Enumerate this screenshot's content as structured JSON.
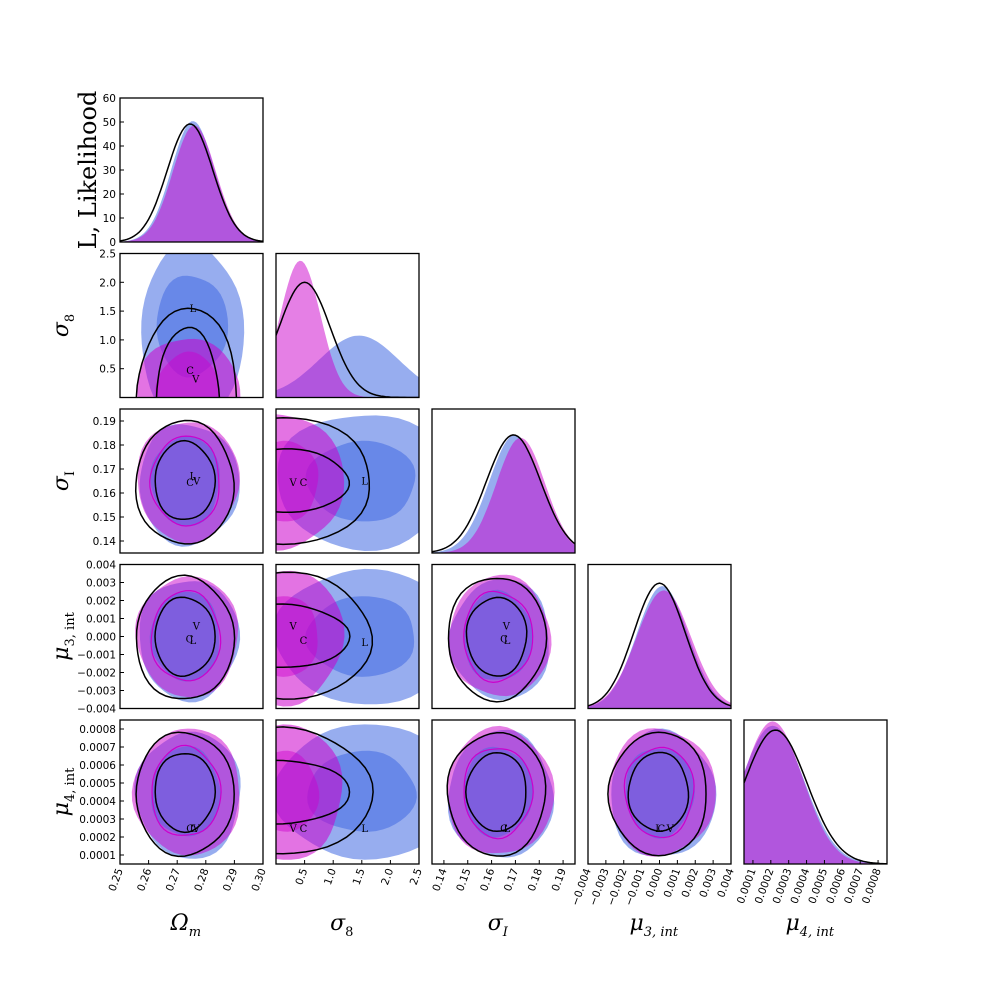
{
  "colors": {
    "blue": "#4169e1",
    "magenta": "#cc00cc",
    "black": "#000000"
  },
  "chart_data": {
    "type": "scatter",
    "subtype": "corner-plot",
    "parameters": [
      {
        "key": "om",
        "label": "Ω",
        "sub": "m",
        "range": [
          0.25,
          0.3
        ],
        "ticks": [
          0.25,
          0.26,
          0.27,
          0.28,
          0.29,
          0.3
        ],
        "tick_labels": [
          "0.25",
          "0.26",
          "0.27",
          "0.28",
          "0.29",
          "0.30"
        ],
        "hist_mean": 0.2755,
        "hist_sigma": 0.0078
      },
      {
        "key": "s8",
        "label": "σ",
        "sub": "8",
        "range": [
          0.0,
          2.5
        ],
        "ticks": [
          0.5,
          1.0,
          1.5,
          2.0,
          2.5
        ],
        "tick_labels": [
          "0.5",
          "1.0",
          "1.5",
          "2.0",
          "2.5"
        ]
      },
      {
        "key": "si",
        "label": "σ",
        "sub": "I",
        "range": [
          0.135,
          0.195
        ],
        "ticks": [
          0.14,
          0.15,
          0.16,
          0.17,
          0.18,
          0.19
        ],
        "tick_labels": [
          "0.14",
          "0.15",
          "0.16",
          "0.17",
          "0.18",
          "0.19"
        ]
      },
      {
        "key": "m3",
        "label": "μ",
        "sub": "3, int",
        "range": [
          -0.004,
          0.004
        ],
        "ticks": [
          -0.004,
          -0.003,
          -0.002,
          -0.001,
          0.0,
          0.001,
          0.002,
          0.003,
          0.004
        ],
        "tick_labels": [
          "−0.004",
          "−0.003",
          "−0.002",
          "−0.001",
          "0.000",
          "0.001",
          "0.002",
          "0.003",
          "0.004"
        ]
      },
      {
        "key": "m4",
        "label": "μ",
        "sub": "4, int",
        "range": [
          5e-05,
          0.00085
        ],
        "ticks": [
          0.0001,
          0.0002,
          0.0003,
          0.0004,
          0.0005,
          0.0006,
          0.0007,
          0.0008
        ],
        "tick_labels": [
          "0.0001",
          "0.0002",
          "0.0003",
          "0.0004",
          "0.0005",
          "0.0006",
          "0.0007",
          "0.0008"
        ]
      }
    ],
    "first_diag_ylabel": "L, Likelihood",
    "first_diag_ylim": [
      0,
      60
    ],
    "first_diag_yticks": [
      0,
      10,
      20,
      30,
      40,
      50,
      60
    ],
    "series": [
      {
        "name": "",
        "color": "#4169e1"
      },
      {
        "name": "",
        "color": "#cc00cc"
      },
      {
        "name": "",
        "color": "#000000"
      }
    ],
    "point_markers": [
      {
        "cell": [
          1,
          0
        ],
        "text": "L",
        "x": 0.2755,
        "y": 1.55
      },
      {
        "cell": [
          1,
          0
        ],
        "text": "C",
        "x": 0.2745,
        "y": 0.48
      },
      {
        "cell": [
          1,
          0
        ],
        "text": "V",
        "x": 0.2765,
        "y": 0.33
      },
      {
        "cell": [
          2,
          0
        ],
        "text": "L",
        "x": 0.2755,
        "y": 0.1672
      },
      {
        "cell": [
          2,
          0
        ],
        "text": "C",
        "x": 0.2745,
        "y": 0.1645
      },
      {
        "cell": [
          2,
          0
        ],
        "text": "V",
        "x": 0.2768,
        "y": 0.1652
      },
      {
        "cell": [
          3,
          0
        ],
        "text": "V",
        "x": 0.2767,
        "y": 0.0006
      },
      {
        "cell": [
          3,
          0
        ],
        "text": "C",
        "x": 0.2743,
        "y": -0.0001
      },
      {
        "cell": [
          3,
          0
        ],
        "text": "L",
        "x": 0.2755,
        "y": -0.0002
      },
      {
        "cell": [
          4,
          0
        ],
        "text": "C",
        "x": 0.2745,
        "y": 0.00025
      },
      {
        "cell": [
          4,
          0
        ],
        "text": "L",
        "x": 0.2755,
        "y": 0.00025
      },
      {
        "cell": [
          4,
          0
        ],
        "text": "V",
        "x": 0.2767,
        "y": 0.00025
      },
      {
        "cell": [
          2,
          1
        ],
        "text": "V",
        "x": 0.3,
        "y": 0.1645
      },
      {
        "cell": [
          2,
          1
        ],
        "text": "C",
        "x": 0.48,
        "y": 0.1645
      },
      {
        "cell": [
          2,
          1
        ],
        "text": "L",
        "x": 1.55,
        "y": 0.1652
      },
      {
        "cell": [
          3,
          1
        ],
        "text": "V",
        "x": 0.3,
        "y": 0.0006
      },
      {
        "cell": [
          3,
          1
        ],
        "text": "C",
        "x": 0.48,
        "y": -0.0002
      },
      {
        "cell": [
          3,
          1
        ],
        "text": "L",
        "x": 1.55,
        "y": -0.0003
      },
      {
        "cell": [
          4,
          1
        ],
        "text": "V",
        "x": 0.3,
        "y": 0.00025
      },
      {
        "cell": [
          4,
          1
        ],
        "text": "C",
        "x": 0.48,
        "y": 0.00025
      },
      {
        "cell": [
          4,
          1
        ],
        "text": "L",
        "x": 1.55,
        "y": 0.00025
      },
      {
        "cell": [
          3,
          2
        ],
        "text": "V",
        "x": 0.1662,
        "y": 0.0006
      },
      {
        "cell": [
          3,
          2
        ],
        "text": "C",
        "x": 0.1652,
        "y": -0.0001
      },
      {
        "cell": [
          3,
          2
        ],
        "text": "L",
        "x": 0.1665,
        "y": -0.0002
      },
      {
        "cell": [
          4,
          2
        ],
        "text": "C",
        "x": 0.1652,
        "y": 0.00025
      },
      {
        "cell": [
          4,
          2
        ],
        "text": "L",
        "x": 0.1664,
        "y": 0.00025
      },
      {
        "cell": [
          4,
          3
        ],
        "text": "L",
        "x": -5e-05,
        "y": 0.00025
      },
      {
        "cell": [
          4,
          3
        ],
        "text": "C",
        "x": 0.0001,
        "y": 0.00025
      },
      {
        "cell": [
          4,
          3
        ],
        "text": "V",
        "x": 0.0006,
        "y": 0.00025
      }
    ]
  }
}
